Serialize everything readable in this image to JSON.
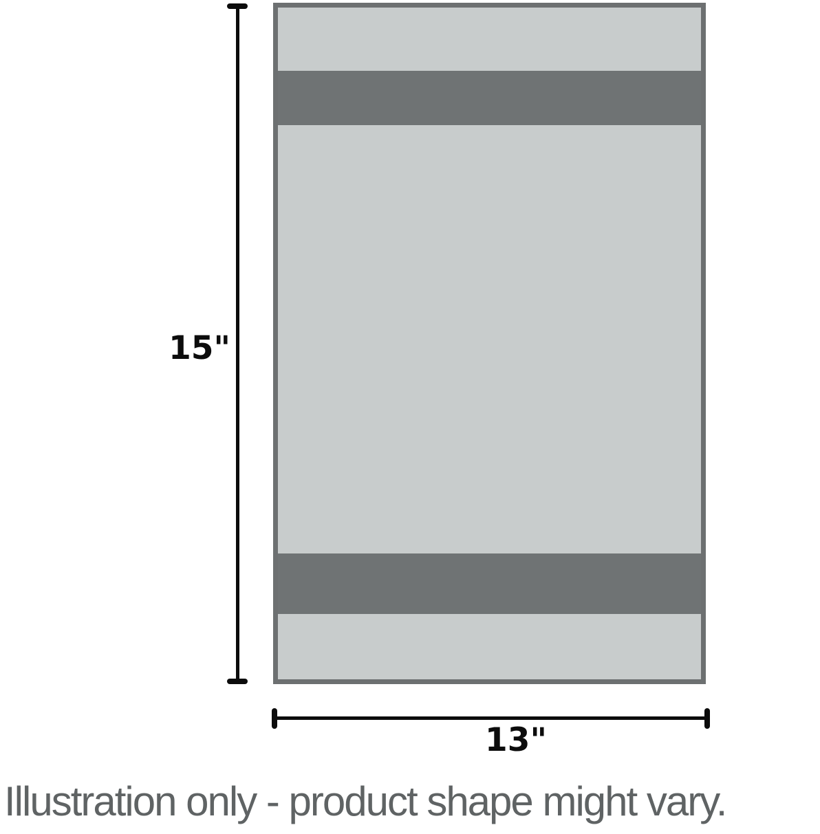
{
  "figure": {
    "height_dimension": "15\"",
    "width_dimension": "13\"",
    "caption": "Illustration only - product shape might vary."
  },
  "colors": {
    "background": "#ffffff",
    "panel_fill": "#c8cccc",
    "stripe_fill": "#6f7374",
    "outline": "#6d7071",
    "dimension_ink": "#0c0c0c",
    "caption_text": "#5f6364"
  }
}
